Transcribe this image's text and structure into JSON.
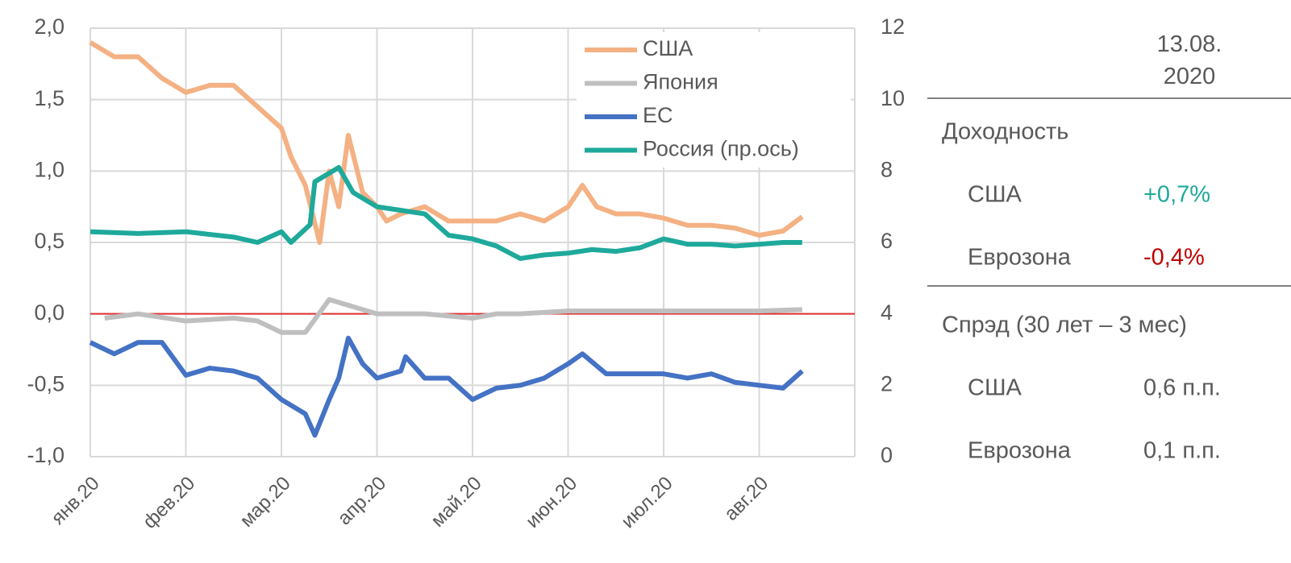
{
  "chart_data": {
    "type": "line",
    "xlim": [
      0,
      8
    ],
    "xticks": [
      {
        "value": 0,
        "label": "янв.20"
      },
      {
        "value": 1,
        "label": "фев.20"
      },
      {
        "value": 2,
        "label": "мар.20"
      },
      {
        "value": 3,
        "label": "апр.20"
      },
      {
        "value": 4,
        "label": "май.20"
      },
      {
        "value": 5,
        "label": "июн.20"
      },
      {
        "value": 6,
        "label": "июл.20"
      },
      {
        "value": 7,
        "label": "авг.20"
      },
      8
    ],
    "ylim": [
      -1,
      2
    ],
    "yticks": [
      {
        "value": 2,
        "label": "2,0"
      },
      {
        "value": 1.5,
        "label": "1,5"
      },
      {
        "value": 1,
        "label": "1,0"
      },
      {
        "value": 0.5,
        "label": "0,5"
      },
      {
        "value": 0,
        "label": "0,0"
      },
      {
        "value": -0.5,
        "label": "-0,5"
      },
      {
        "value": -1,
        "label": "-1,0"
      }
    ],
    "y2lim": [
      0,
      12
    ],
    "y2ticks": [
      0,
      2,
      4,
      6,
      8,
      10,
      12
    ],
    "grid": true,
    "zero_line_color": "#e03030",
    "legend": "top-right",
    "series": [
      {
        "name": "США",
        "color": "#f4b183",
        "x": [
          0,
          0.25,
          0.5,
          0.75,
          1.0,
          1.25,
          1.5,
          1.75,
          2.0,
          2.1,
          2.25,
          2.4,
          2.5,
          2.6,
          2.7,
          2.85,
          3.0,
          3.1,
          3.25,
          3.5,
          3.75,
          4.0,
          4.25,
          4.5,
          4.75,
          5.0,
          5.15,
          5.3,
          5.5,
          5.75,
          6.0,
          6.25,
          6.5,
          6.75,
          7.0,
          7.25,
          7.45
        ],
        "values": [
          1.9,
          1.8,
          1.8,
          1.65,
          1.55,
          1.6,
          1.6,
          1.45,
          1.3,
          1.1,
          0.9,
          0.5,
          1.0,
          0.75,
          1.25,
          0.85,
          0.75,
          0.65,
          0.7,
          0.75,
          0.65,
          0.65,
          0.65,
          0.7,
          0.65,
          0.75,
          0.9,
          0.75,
          0.7,
          0.7,
          0.67,
          0.62,
          0.62,
          0.6,
          0.55,
          0.58,
          0.68
        ]
      },
      {
        "name": "Япония",
        "color": "#bfbfbf",
        "x": [
          0.15,
          0.5,
          1.0,
          1.5,
          1.75,
          2.0,
          2.25,
          2.5,
          2.75,
          3.0,
          3.5,
          4.0,
          4.25,
          4.5,
          5.0,
          5.5,
          6.0,
          6.5,
          7.0,
          7.45
        ],
        "values": [
          -0.03,
          0.0,
          -0.05,
          -0.03,
          -0.05,
          -0.13,
          -0.13,
          0.1,
          0.05,
          0.0,
          0.0,
          -0.03,
          0.0,
          0.0,
          0.02,
          0.02,
          0.02,
          0.02,
          0.02,
          0.03
        ]
      },
      {
        "name": "ЕС",
        "color": "#4472c4",
        "x": [
          0,
          0.25,
          0.5,
          0.75,
          1.0,
          1.25,
          1.5,
          1.75,
          2.0,
          2.25,
          2.35,
          2.5,
          2.6,
          2.7,
          2.85,
          3.0,
          3.25,
          3.3,
          3.5,
          3.75,
          4.0,
          4.25,
          4.5,
          4.75,
          5.0,
          5.15,
          5.4,
          5.75,
          6.0,
          6.25,
          6.5,
          6.75,
          7.0,
          7.25,
          7.45
        ],
        "values": [
          -0.2,
          -0.28,
          -0.2,
          -0.2,
          -0.43,
          -0.38,
          -0.4,
          -0.45,
          -0.6,
          -0.7,
          -0.85,
          -0.6,
          -0.45,
          -0.17,
          -0.35,
          -0.45,
          -0.4,
          -0.3,
          -0.45,
          -0.45,
          -0.6,
          -0.52,
          -0.5,
          -0.45,
          -0.35,
          -0.28,
          -0.42,
          -0.42,
          -0.42,
          -0.45,
          -0.42,
          -0.48,
          -0.5,
          -0.52,
          -0.4
        ]
      },
      {
        "name": "Россия (пр.ось)",
        "color": "#1ea99b",
        "axis": "y2",
        "x": [
          0,
          0.5,
          1.0,
          1.5,
          1.75,
          2.0,
          2.1,
          2.3,
          2.35,
          2.6,
          2.75,
          3.0,
          3.25,
          3.5,
          3.75,
          4.0,
          4.25,
          4.5,
          4.75,
          5.0,
          5.25,
          5.5,
          5.75,
          6.0,
          6.25,
          6.5,
          6.75,
          7.0,
          7.25,
          7.45
        ],
        "values": [
          6.3,
          6.25,
          6.3,
          6.15,
          6.0,
          6.3,
          6.0,
          6.5,
          7.7,
          8.1,
          7.4,
          7.0,
          6.9,
          6.8,
          6.2,
          6.1,
          5.9,
          5.55,
          5.65,
          5.7,
          5.8,
          5.75,
          5.85,
          6.1,
          5.95,
          5.95,
          5.9,
          5.95,
          6.0,
          6.0
        ]
      }
    ]
  },
  "table": {
    "header": "13.08. 2020",
    "sections": [
      {
        "title": "Доходность",
        "rows": [
          {
            "label": "США",
            "value": "+0,7%",
            "color": "#1ea99b"
          },
          {
            "label": "Еврозона",
            "value": "-0,4%",
            "color": "#c00000"
          }
        ]
      },
      {
        "title": "Спрэд (30 лет – 3 мес)",
        "rows": [
          {
            "label": "США",
            "value": "0,6 п.п.",
            "color": "#595959"
          },
          {
            "label": "Еврозона",
            "value": "0,1 п.п.",
            "color": "#595959"
          }
        ]
      }
    ]
  }
}
